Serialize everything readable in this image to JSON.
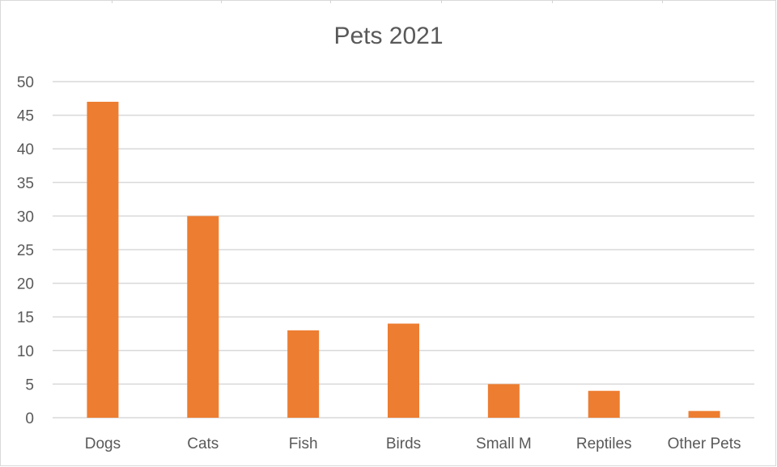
{
  "chart_data": {
    "type": "bar",
    "title": "Pets 2021",
    "categories": [
      "Dogs",
      "Cats",
      "Fish",
      "Birds",
      "Small M",
      "Reptiles",
      "Other Pets"
    ],
    "values": [
      47,
      30,
      13,
      14,
      5,
      4,
      1
    ],
    "xlabel": "",
    "ylabel": "",
    "ylim": [
      0,
      50
    ],
    "yticks": [
      "0",
      "5",
      "10",
      "15",
      "20",
      "25",
      "30",
      "35",
      "40",
      "45",
      "50"
    ],
    "grid": true,
    "legend": "none",
    "bar_color": "#ED7D31",
    "gridline_color": "#D9D9D9"
  }
}
